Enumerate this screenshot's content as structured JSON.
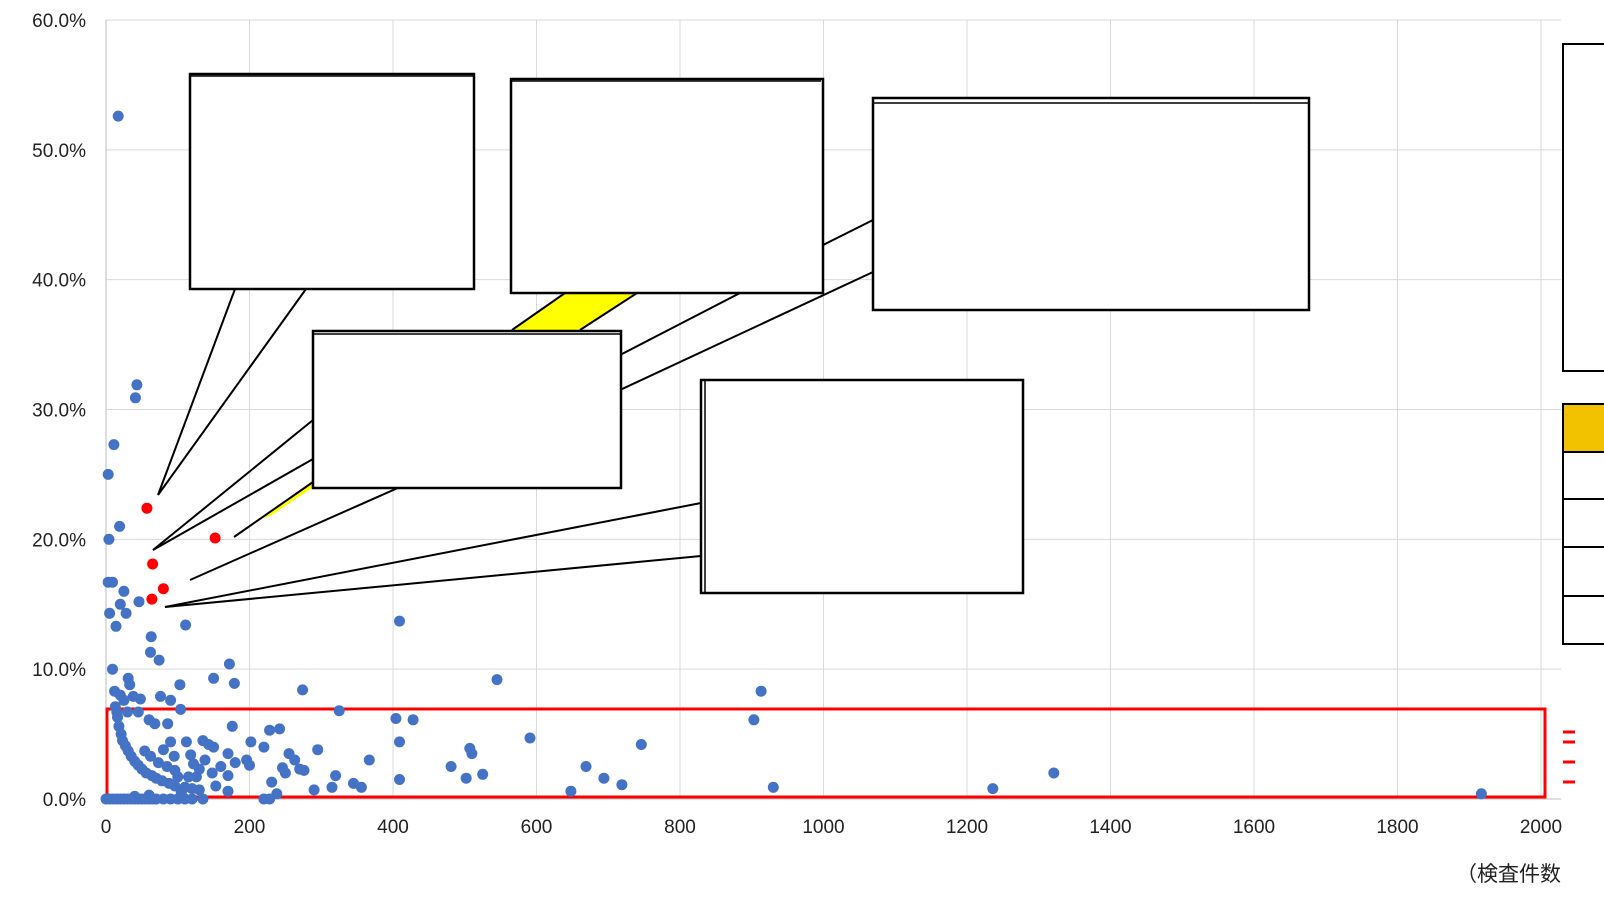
{
  "chart_data": {
    "type": "scatter",
    "title": "",
    "xlabel": "（検査件数",
    "ylabel": "",
    "xlim": [
      0,
      2000
    ],
    "ylim": [
      0,
      60
    ],
    "x_ticks": [
      "0",
      "200",
      "400",
      "600",
      "800",
      "1000",
      "1200",
      "1400",
      "1600",
      "1800",
      "2000"
    ],
    "y_ticks": [
      "0.0%",
      "10.0%",
      "20.0%",
      "30.0%",
      "40.0%",
      "50.0%",
      "60.0%"
    ],
    "grid": true,
    "colors": {
      "points": "#4472C4",
      "highlight": "#FF0000",
      "frame": "#FF0000",
      "fill": "#FFFF00",
      "grid": "#D9D9D9"
    },
    "series": [
      {
        "values": [
          [
            17,
            52.6
          ],
          [
            43,
            31.9
          ],
          [
            41,
            30.9
          ],
          [
            11,
            27.3
          ],
          [
            3,
            25.0
          ],
          [
            19,
            21.0
          ],
          [
            4,
            20.0
          ],
          [
            3,
            16.7
          ],
          [
            9,
            16.7
          ],
          [
            25,
            16.0
          ],
          [
            20,
            15.0
          ],
          [
            46,
            15.2
          ],
          [
            5,
            14.3
          ],
          [
            28,
            14.3
          ],
          [
            14,
            13.3
          ],
          [
            111,
            13.4
          ],
          [
            63,
            12.5
          ],
          [
            62,
            11.3
          ],
          [
            74,
            10.7
          ],
          [
            409,
            13.7
          ],
          [
            172,
            10.4
          ],
          [
            9,
            10.0
          ],
          [
            179,
            8.9
          ],
          [
            103,
            8.8
          ],
          [
            150,
            9.3
          ],
          [
            545,
            9.2
          ],
          [
            274,
            8.4
          ],
          [
            913,
            8.3
          ],
          [
            12,
            8.3
          ],
          [
            20,
            8.0
          ],
          [
            31,
            9.3
          ],
          [
            33,
            8.8
          ],
          [
            38,
            7.9
          ],
          [
            48,
            7.7
          ],
          [
            76,
            7.9
          ],
          [
            90,
            7.6
          ],
          [
            325,
            6.8
          ],
          [
            404,
            6.2
          ],
          [
            428,
            6.1
          ],
          [
            903,
            6.1
          ],
          [
            13,
            7.1
          ],
          [
            15,
            6.7
          ],
          [
            30,
            6.7
          ],
          [
            45,
            6.7
          ],
          [
            25,
            7.6
          ],
          [
            60,
            6.1
          ],
          [
            68,
            5.8
          ],
          [
            86,
            5.8
          ],
          [
            176,
            5.6
          ],
          [
            228,
            5.3
          ],
          [
            242,
            5.4
          ],
          [
            16,
            6.3
          ],
          [
            18,
            5.6
          ],
          [
            21,
            5.0
          ],
          [
            23,
            4.5
          ],
          [
            27,
            4.1
          ],
          [
            31,
            3.7
          ],
          [
            35,
            3.3
          ],
          [
            40,
            2.9
          ],
          [
            45,
            2.6
          ],
          [
            50,
            2.3
          ],
          [
            56,
            2.0
          ],
          [
            64,
            1.8
          ],
          [
            70,
            1.6
          ],
          [
            78,
            1.4
          ],
          [
            88,
            1.2
          ],
          [
            96,
            1.0
          ],
          [
            110,
            0.9
          ],
          [
            120,
            0.8
          ],
          [
            54,
            3.7
          ],
          [
            62,
            3.3
          ],
          [
            73,
            2.8
          ],
          [
            85,
            2.5
          ],
          [
            96,
            2.2
          ],
          [
            104,
            6.9
          ],
          [
            112,
            4.4
          ],
          [
            135,
            4.5
          ],
          [
            143,
            4.2
          ],
          [
            150,
            4.0
          ],
          [
            122,
            2.7
          ],
          [
            130,
            2.3
          ],
          [
            138,
            3.0
          ],
          [
            148,
            2.0
          ],
          [
            160,
            2.5
          ],
          [
            170,
            3.5
          ],
          [
            202,
            4.4
          ],
          [
            220,
            4.0
          ],
          [
            200,
            2.6
          ],
          [
            196,
            3.0
          ],
          [
            255,
            3.5
          ],
          [
            263,
            3.0
          ],
          [
            270,
            2.3
          ],
          [
            295,
            3.8
          ],
          [
            246,
            2.4
          ],
          [
            250,
            2.0
          ],
          [
            276,
            2.2
          ],
          [
            231,
            1.3
          ],
          [
            320,
            1.8
          ],
          [
            345,
            1.2
          ],
          [
            356,
            0.9
          ],
          [
            367,
            3.0
          ],
          [
            409,
            1.5
          ],
          [
            409,
            4.4
          ],
          [
            507,
            3.9
          ],
          [
            510,
            3.5
          ],
          [
            481,
            2.5
          ],
          [
            502,
            1.6
          ],
          [
            525,
            1.9
          ],
          [
            591,
            4.7
          ],
          [
            648,
            0.6
          ],
          [
            669,
            2.5
          ],
          [
            694,
            1.6
          ],
          [
            719,
            1.1
          ],
          [
            746,
            4.2
          ],
          [
            930,
            0.9
          ],
          [
            1236,
            0.8
          ],
          [
            1321,
            2.0
          ],
          [
            1917,
            0.4
          ],
          [
            290,
            0.7
          ],
          [
            315,
            0.9
          ],
          [
            238,
            0.4
          ],
          [
            170,
            0.6
          ],
          [
            105,
            0.5
          ],
          [
            130,
            0.7
          ],
          [
            153,
            1.0
          ],
          [
            60,
            0.3
          ],
          [
            40,
            0.2
          ],
          [
            115,
            1.7
          ],
          [
            118,
            3.4
          ],
          [
            100,
            1.7
          ],
          [
            126,
            1.7
          ],
          [
            80,
            3.8
          ],
          [
            90,
            4.4
          ],
          [
            95,
            3.3
          ],
          [
            170,
            1.8
          ],
          [
            180,
            2.8
          ],
          [
            0,
            0
          ],
          [
            5,
            0
          ],
          [
            10,
            0
          ],
          [
            15,
            0
          ],
          [
            20,
            0
          ],
          [
            25,
            0
          ],
          [
            30,
            0
          ],
          [
            35,
            0
          ],
          [
            40,
            0
          ],
          [
            45,
            0
          ],
          [
            50,
            0
          ],
          [
            55,
            0
          ],
          [
            60,
            0
          ],
          [
            65,
            0
          ],
          [
            70,
            0
          ],
          [
            80,
            0
          ],
          [
            90,
            0
          ],
          [
            100,
            0
          ],
          [
            110,
            0
          ],
          [
            120,
            0
          ],
          [
            135,
            0
          ],
          [
            220,
            0
          ],
          [
            228,
            0
          ]
        ]
      },
      {
        "values": [
          [
            57,
            22.4
          ],
          [
            152,
            20.1
          ],
          [
            65,
            18.1
          ],
          [
            80,
            16.2
          ],
          [
            64,
            15.4
          ]
        ]
      }
    ]
  }
}
